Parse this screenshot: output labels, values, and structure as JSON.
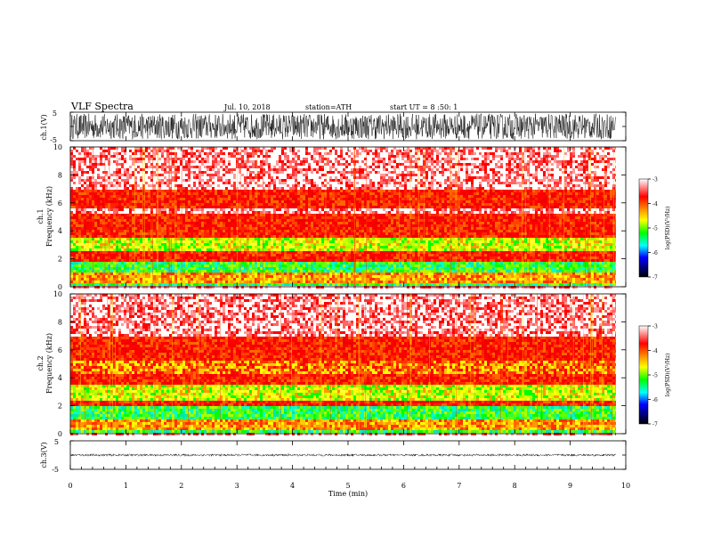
{
  "header": {
    "title": "VLF Spectra",
    "date": "Jul. 10, 2018",
    "station": "station=ATH",
    "start_ut": "start UT = 8 :50: 1"
  },
  "chart_data": [
    {
      "type": "line",
      "name": "waveform-ch1",
      "ylabel": "ch.1(V)",
      "ylim": [
        -5,
        5
      ],
      "yticks": [
        "5",
        "-5"
      ],
      "xlim": [
        0,
        10
      ],
      "data_x_end": 9.82,
      "amplitude_range": [
        -4.5,
        4.5
      ]
    },
    {
      "type": "heatmap",
      "name": "spectrogram-ch1",
      "ylabel_top": "ch.1",
      "ylabel": "Frequency (kHz)",
      "ylim": [
        0,
        10
      ],
      "yticks": [
        "0",
        "2",
        "4",
        "6",
        "8",
        "10"
      ],
      "xlim": [
        0,
        10
      ],
      "data_x_end": 9.82,
      "bands": [
        {
          "from": 0.0,
          "to": 0.3,
          "level": "green"
        },
        {
          "from": 0.3,
          "to": 1.0,
          "level": "orange"
        },
        {
          "from": 1.0,
          "to": 1.7,
          "level": "green"
        },
        {
          "from": 1.7,
          "to": 2.6,
          "level": "red"
        },
        {
          "from": 2.6,
          "to": 3.5,
          "level": "yellow-green"
        },
        {
          "from": 3.5,
          "to": 5.3,
          "level": "red"
        },
        {
          "from": 5.3,
          "to": 5.6,
          "level": "red-light"
        },
        {
          "from": 5.6,
          "to": 7.0,
          "level": "red"
        },
        {
          "from": 7.0,
          "to": 10.0,
          "level": "red-light"
        }
      ],
      "colorbar": {
        "label": "log(PSD)(V²/Hz)",
        "ticks": [
          "-3",
          "-4",
          "-5",
          "-6",
          "-7"
        ],
        "colors": [
          "#ffffff",
          "#ff0000",
          "#ff9900",
          "#ffff00",
          "#00ff00",
          "#00ffff",
          "#0000ff",
          "#000000"
        ]
      }
    },
    {
      "type": "heatmap",
      "name": "spectrogram-ch2",
      "ylabel_top": "ch.2",
      "ylabel": "Frequency (kHz)",
      "ylim": [
        0,
        10
      ],
      "yticks": [
        "0",
        "2",
        "4",
        "6",
        "8",
        "10"
      ],
      "xlim": [
        0,
        10
      ],
      "data_x_end": 9.82,
      "bands": [
        {
          "from": 0.0,
          "to": 0.3,
          "level": "green"
        },
        {
          "from": 0.3,
          "to": 1.0,
          "level": "orange"
        },
        {
          "from": 1.0,
          "to": 1.9,
          "level": "green"
        },
        {
          "from": 1.9,
          "to": 2.3,
          "level": "red"
        },
        {
          "from": 2.3,
          "to": 3.5,
          "level": "yellow-green"
        },
        {
          "from": 3.5,
          "to": 4.3,
          "level": "red"
        },
        {
          "from": 4.3,
          "to": 5.3,
          "level": "yellow-red"
        },
        {
          "from": 5.3,
          "to": 7.0,
          "level": "red"
        },
        {
          "from": 7.0,
          "to": 10.0,
          "level": "red-light"
        }
      ],
      "colorbar": {
        "label": "log(PSD)(V²/Hz)",
        "ticks": [
          "-3",
          "-4",
          "-5",
          "-6",
          "-7"
        ],
        "colors": [
          "#ffffff",
          "#ff0000",
          "#ff9900",
          "#ffff00",
          "#00ff00",
          "#00ffff",
          "#0000ff",
          "#000000"
        ]
      }
    },
    {
      "type": "line",
      "name": "waveform-ch3",
      "ylabel": "ch.3(V)",
      "ylim": [
        -5,
        5
      ],
      "yticks": [
        "5",
        "-5"
      ],
      "xlim": [
        0,
        10
      ],
      "data_x_end": 9.82,
      "amplitude_range": [
        -0.4,
        0.4
      ]
    }
  ],
  "x_axis": {
    "label": "Time (min)",
    "ticks": [
      "0",
      "1",
      "2",
      "3",
      "4",
      "5",
      "6",
      "7",
      "8",
      "9",
      "10"
    ]
  }
}
